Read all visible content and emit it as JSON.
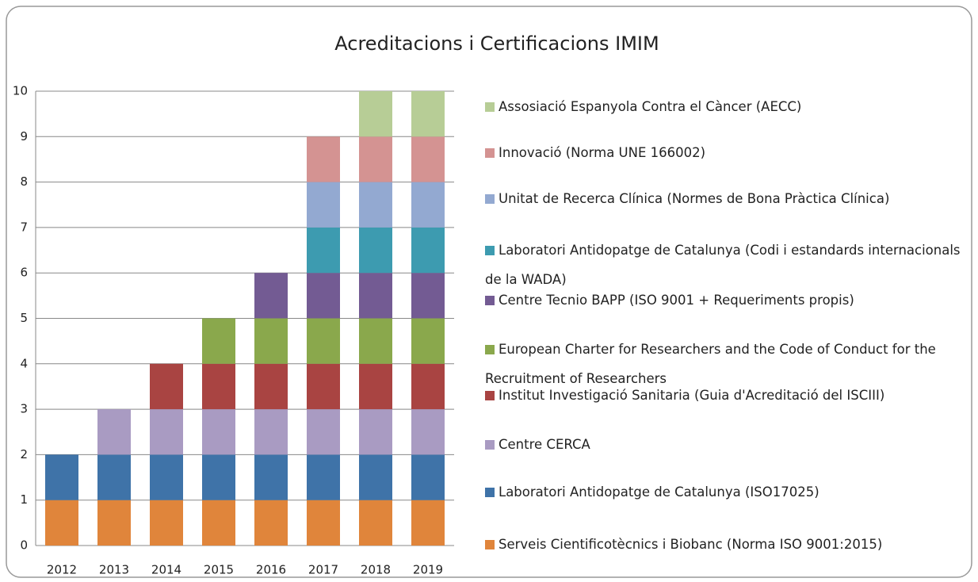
{
  "chart_data": {
    "type": "stacked-bar",
    "title": "Acreditacions i Certificacions IMIM",
    "categories": [
      "2012",
      "2013",
      "2014",
      "2015",
      "2016",
      "2017",
      "2018",
      "2019"
    ],
    "ylim": [
      0,
      10
    ],
    "yticks": [
      0,
      1,
      2,
      3,
      4,
      5,
      6,
      7,
      8,
      9,
      10
    ],
    "grid": true,
    "series": [
      {
        "name": "Serveis Cientificotècnics i Biobanc (Norma ISO 9001:2015)",
        "color": "#e0853b",
        "values": [
          1,
          1,
          1,
          1,
          1,
          1,
          1,
          1
        ]
      },
      {
        "name": "Laboratori Antidopatge de Catalunya (ISO17025)",
        "color": "#3f73a8",
        "values": [
          1,
          1,
          1,
          1,
          1,
          1,
          1,
          1
        ]
      },
      {
        "name": "Centre CERCA",
        "color": "#a99bc2",
        "values": [
          0,
          1,
          1,
          1,
          1,
          1,
          1,
          1
        ]
      },
      {
        "name": "Institut Investigació Sanitaria (Guia d'Acreditació del ISCIII)",
        "color": "#a94442",
        "values": [
          0,
          0,
          1,
          1,
          1,
          1,
          1,
          1
        ]
      },
      {
        "name": "European Charter for Researchers and the Code of Conduct for the Recruitment of Researchers",
        "color": "#8aa84c",
        "values": [
          0,
          0,
          0,
          1,
          1,
          1,
          1,
          1
        ]
      },
      {
        "name": "Centre Tecnio BAPP (ISO 9001 + Requeriments propis)",
        "color": "#735b93",
        "values": [
          0,
          0,
          0,
          0,
          1,
          1,
          1,
          1
        ]
      },
      {
        "name": "Laboratori Antidopatge de Catalunya (Codi i estandards internacionals de la WADA)",
        "color": "#3d9bb0",
        "values": [
          0,
          0,
          0,
          0,
          0,
          1,
          1,
          1
        ]
      },
      {
        "name": "Unitat de Recerca Clínica (Normes de Bona Pràctica Clínica)",
        "color": "#93a9d1",
        "values": [
          0,
          0,
          0,
          0,
          0,
          1,
          1,
          1
        ]
      },
      {
        "name": "Innovació (Norma UNE 166002)",
        "color": "#d49392",
        "values": [
          0,
          0,
          0,
          0,
          0,
          1,
          1,
          1
        ]
      },
      {
        "name": "Assosiació Espanyola Contra el Càncer (AECC)",
        "color": "#b7cd96",
        "values": [
          0,
          0,
          0,
          0,
          0,
          0,
          1,
          1
        ]
      }
    ]
  }
}
